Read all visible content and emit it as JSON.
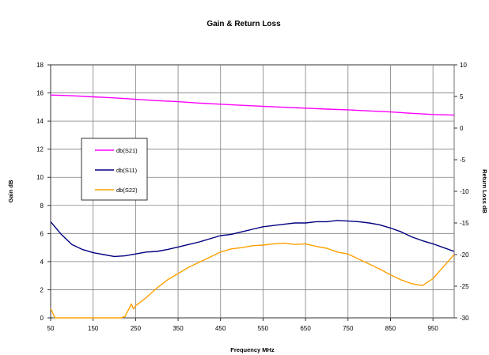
{
  "chart_data": {
    "type": "line",
    "title": "Gain & Return Loss",
    "xlabel": "Frequency  MHz",
    "ylabel": "Gain dB",
    "y2label": "Return Loss dB",
    "xlim": [
      50,
      1000
    ],
    "ylim": [
      0,
      18
    ],
    "y2lim": [
      -30,
      10
    ],
    "x_ticks": [
      50,
      150,
      250,
      350,
      450,
      550,
      650,
      750,
      850,
      950
    ],
    "y_ticks": [
      0,
      2,
      4,
      6,
      8,
      10,
      12,
      14,
      16,
      18
    ],
    "y2_ticks": [
      -30,
      -25,
      -20,
      -15,
      -10,
      -5,
      0,
      5,
      10
    ],
    "grid": true,
    "legend_position": "left, mid-height",
    "series": [
      {
        "name": "db(S21)",
        "axis": "left",
        "color": "#ff00ff",
        "x": [
          50,
          100,
          150,
          200,
          250,
          300,
          350,
          400,
          450,
          500,
          550,
          600,
          650,
          700,
          750,
          800,
          850,
          900,
          950,
          1000
        ],
        "values": [
          15.85,
          15.8,
          15.72,
          15.65,
          15.55,
          15.45,
          15.38,
          15.28,
          15.2,
          15.12,
          15.05,
          14.98,
          14.92,
          14.85,
          14.8,
          14.72,
          14.65,
          14.55,
          14.47,
          14.42
        ]
      },
      {
        "name": "db(S11)",
        "axis": "right",
        "color": "#000080",
        "x": [
          50,
          75,
          100,
          125,
          150,
          175,
          200,
          225,
          250,
          275,
          300,
          325,
          350,
          375,
          400,
          425,
          450,
          475,
          500,
          525,
          550,
          575,
          600,
          625,
          650,
          675,
          700,
          725,
          750,
          775,
          800,
          825,
          850,
          875,
          900,
          925,
          950,
          975,
          1000
        ],
        "values": [
          -14.8,
          -16.8,
          -18.4,
          -19.2,
          -19.7,
          -20.0,
          -20.3,
          -20.2,
          -19.9,
          -19.6,
          -19.5,
          -19.2,
          -18.8,
          -18.4,
          -18.0,
          -17.5,
          -17.0,
          -16.8,
          -16.4,
          -16.0,
          -15.6,
          -15.4,
          -15.2,
          -15.0,
          -15.0,
          -14.8,
          -14.8,
          -14.6,
          -14.7,
          -14.8,
          -15.0,
          -15.3,
          -15.8,
          -16.4,
          -17.2,
          -17.8,
          -18.3,
          -18.9,
          -19.5
        ]
      },
      {
        "name": "db(S22)",
        "axis": "right",
        "color": "#ffa000",
        "x": [
          50,
          60,
          75,
          100,
          125,
          150,
          175,
          200,
          215,
          225,
          235,
          240,
          245,
          250,
          275,
          300,
          325,
          350,
          375,
          400,
          425,
          450,
          475,
          500,
          525,
          550,
          575,
          600,
          625,
          650,
          675,
          700,
          725,
          750,
          775,
          800,
          825,
          850,
          875,
          900,
          925,
          950,
          975,
          1000
        ],
        "values": [
          -28.5,
          -30,
          -30,
          -30,
          -30,
          -30,
          -30,
          -30,
          -30,
          -29.8,
          -28.5,
          -27.8,
          -28.6,
          -28.1,
          -26.8,
          -25.3,
          -24.0,
          -23.0,
          -22.0,
          -21.2,
          -20.4,
          -19.6,
          -19.1,
          -18.9,
          -18.6,
          -18.5,
          -18.3,
          -18.2,
          -18.4,
          -18.3,
          -18.7,
          -19.0,
          -19.6,
          -19.9,
          -20.7,
          -21.5,
          -22.3,
          -23.2,
          -24.0,
          -24.6,
          -24.9,
          -23.8,
          -21.9,
          -20.0
        ]
      }
    ]
  }
}
